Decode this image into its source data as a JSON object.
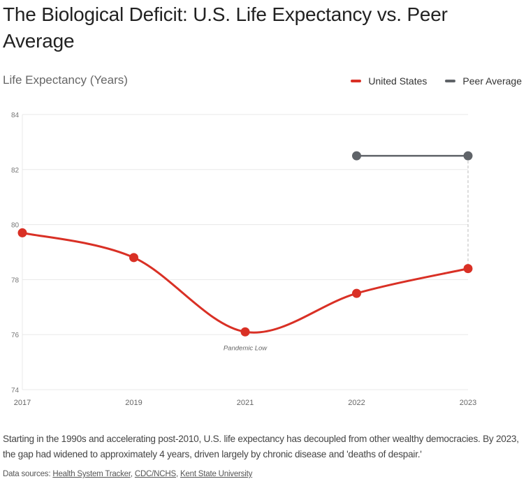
{
  "title": "The Biological Deficit: U.S. Life Expectancy vs. Peer Average",
  "description": "Starting in the 1990s and accelerating post-2010, U.S. life expectancy has decoupled from other wealthy democracies. By 2023, the gap had widened to approximately 4 years, driven largely by chronic disease and 'deaths of despair.'",
  "sources": {
    "label": "Data sources:",
    "links": [
      "Health System Tracker",
      "CDC/NCHS",
      "Kent State University"
    ]
  },
  "chart_data": {
    "type": "line",
    "title": "The Biological Deficit: U.S. Life Expectancy vs. Peer Average",
    "ylabel": "Life Expectancy (Years)",
    "xlabel": "",
    "categories": [
      "2017",
      "2019",
      "2021",
      "2022",
      "2023"
    ],
    "ylim": [
      74,
      84
    ],
    "yticks": [
      74,
      76,
      78,
      80,
      82,
      84
    ],
    "grid": true,
    "legend_position": "top-right",
    "series": [
      {
        "name": "United States",
        "color": "#d93025",
        "values": [
          79.7,
          78.8,
          76.1,
          77.5,
          78.4
        ],
        "smooth": true
      },
      {
        "name": "Peer Average",
        "color": "#5f6368",
        "values": [
          null,
          null,
          null,
          82.5,
          82.5
        ],
        "smooth": false
      }
    ],
    "annotations": [
      {
        "text": "Pandemic Low",
        "x": "2021",
        "y": 76.1
      },
      {
        "type": "gap-line",
        "x": "2023",
        "from": 82.5,
        "to": 78.4
      }
    ]
  }
}
